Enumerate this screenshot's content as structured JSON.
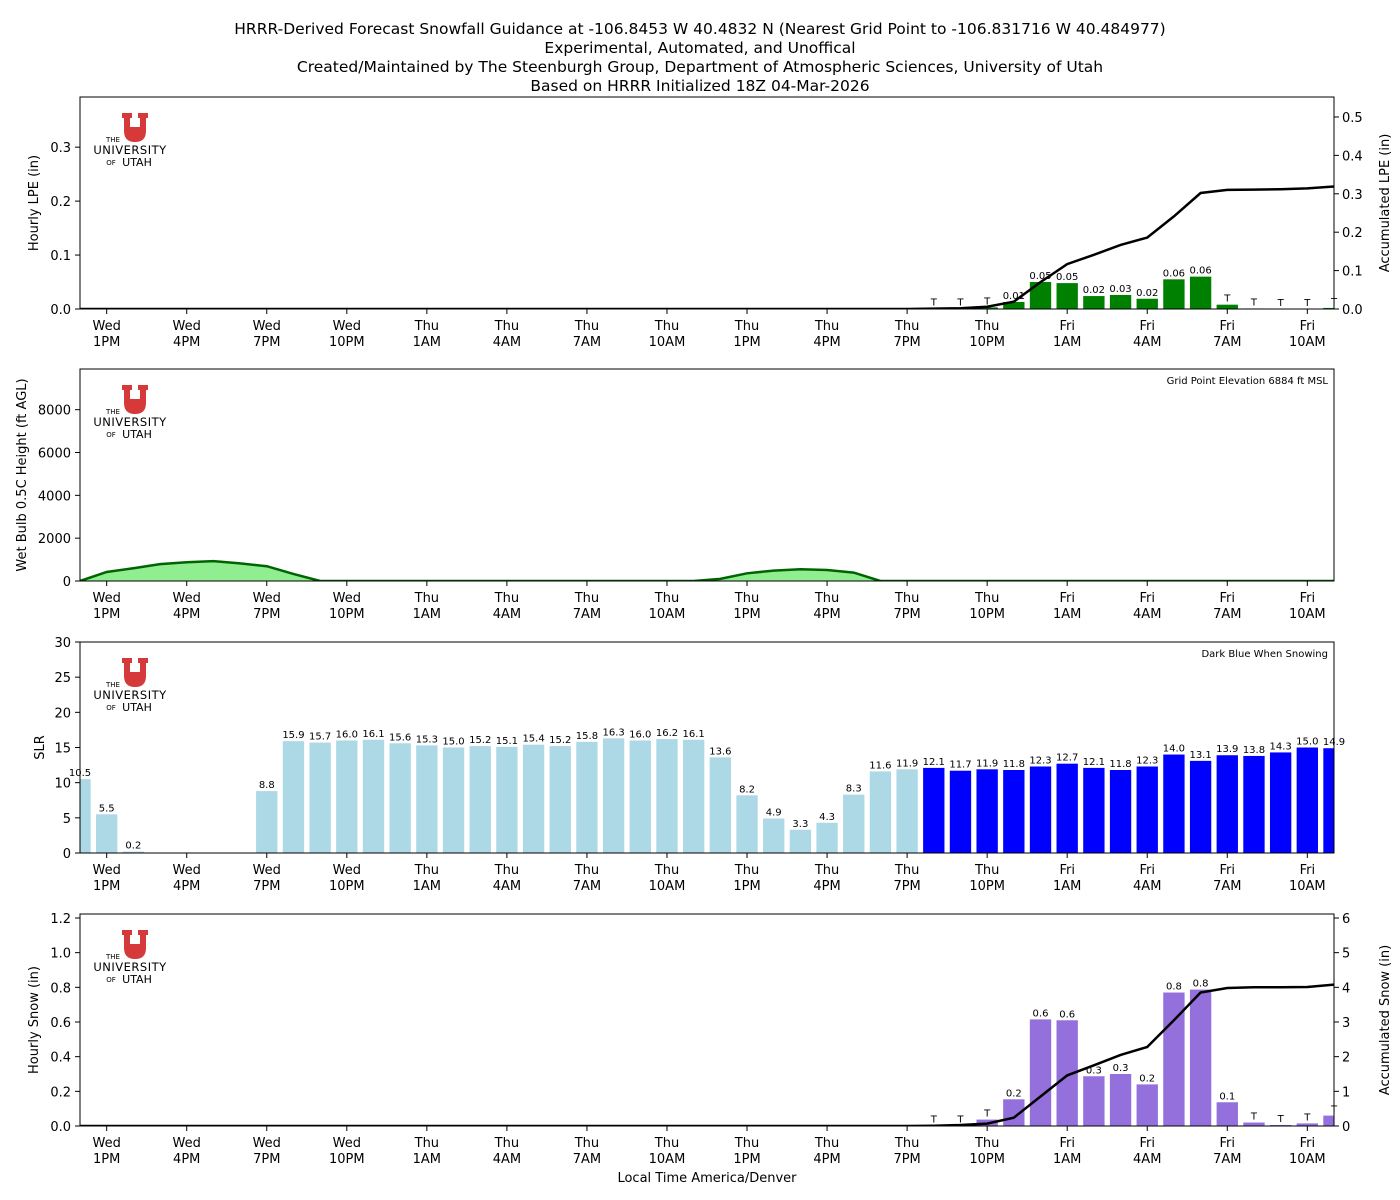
{
  "title_lines": [
    "HRRR-Derived Forecast Snowfall Guidance at -106.8453 W 40.4832 N (Nearest Grid Point to -106.831716 W 40.484977)",
    "Experimental, Automated, and Unoffical",
    "Created/Maintained by The Steenburgh Group, Department of Atmospheric Sciences, University of Utah",
    "Based on HRRR Initialized 18Z 04-Mar-2026"
  ],
  "logo": {
    "the": "THE",
    "university": "UNIVERSITY",
    "of": "OF",
    "utah": "UTAH",
    "color": "#d6393a"
  },
  "colors": {
    "lpe": "#008000",
    "wetbulb_fill": "#90ee90",
    "wetbulb_line": "#006400",
    "slr": "#add8e6",
    "slr_snowing": "#0000ff",
    "snow": "#9370db",
    "accum_line": "#000000"
  },
  "chart_data": [
    {
      "type": "bar",
      "ylabel": "Hourly LPE (in)",
      "ylim": [
        0,
        0.393
      ],
      "yticks": [
        "0.0",
        "0.1",
        "0.2",
        "0.3"
      ],
      "xlabel": "",
      "x_ticks": [
        [
          "Wed",
          "1PM"
        ],
        [
          "Wed",
          "4PM"
        ],
        [
          "Wed",
          "7PM"
        ],
        [
          "Wed",
          "10PM"
        ],
        [
          "Thu",
          "1AM"
        ],
        [
          "Thu",
          "4AM"
        ],
        [
          "Thu",
          "7AM"
        ],
        [
          "Thu",
          "10AM"
        ],
        [
          "Thu",
          "1PM"
        ],
        [
          "Thu",
          "4PM"
        ],
        [
          "Thu",
          "7PM"
        ],
        [
          "Thu",
          "10PM"
        ],
        [
          "Fri",
          "1AM"
        ],
        [
          "Fri",
          "4AM"
        ],
        [
          "Fri",
          "7AM"
        ],
        [
          "Fri",
          "10AM"
        ]
      ],
      "values": [
        0,
        0,
        0,
        0,
        0,
        0,
        0,
        0,
        0,
        0,
        0,
        0,
        0,
        0,
        0,
        0,
        0,
        0,
        0,
        0,
        0,
        0,
        0,
        0,
        0,
        0,
        0,
        0,
        0,
        0,
        0,
        0,
        0.001,
        0.001,
        0.003,
        0.013,
        0.05,
        0.048,
        0.024,
        0.026,
        0.019,
        0.055,
        0.06,
        0.008,
        0.001,
        0,
        0,
        0.002
      ],
      "labels": [
        "",
        "",
        "",
        "",
        "",
        "",
        "",
        "",
        "",
        "",
        "",
        "",
        "",
        "",
        "",
        "",
        "",
        "",
        "",
        "",
        "",
        "",
        "",
        "",
        "",
        "",
        "",
        "",
        "",
        "",
        "",
        "",
        "T",
        "T",
        "T",
        "0.01",
        "0.05",
        "0.05",
        "0.02",
        "0.03",
        "0.02",
        "0.06",
        "0.06",
        "T",
        "T",
        "T",
        "T",
        "T"
      ],
      "secondary": {
        "type": "line",
        "ylabel": "Accumulated LPE (in)",
        "ylim": [
          0,
          0.552
        ],
        "yticks": [
          "0.0",
          "0.1",
          "0.2",
          "0.3",
          "0.4",
          "0.5"
        ],
        "values": [
          0,
          0,
          0,
          0,
          0,
          0,
          0,
          0,
          0,
          0,
          0,
          0,
          0,
          0,
          0,
          0,
          0,
          0,
          0,
          0,
          0,
          0,
          0,
          0,
          0,
          0,
          0,
          0,
          0,
          0,
          0,
          0,
          0.001,
          0.002,
          0.006,
          0.019,
          0.07,
          0.117,
          0.141,
          0.167,
          0.186,
          0.241,
          0.302,
          0.31,
          0.311,
          0.312,
          0.314,
          0.319
        ]
      }
    },
    {
      "type": "area",
      "ylabel": "Wet Bulb 0.5C Height (ft AGL)",
      "ylim": [
        0,
        9900
      ],
      "yticks": [
        "0",
        "2000",
        "4000",
        "6000",
        "8000"
      ],
      "annotation": "Grid Point Elevation 6884 ft MSL",
      "x_ticks": [
        [
          "Wed",
          "1PM"
        ],
        [
          "Wed",
          "4PM"
        ],
        [
          "Wed",
          "7PM"
        ],
        [
          "Wed",
          "10PM"
        ],
        [
          "Thu",
          "1AM"
        ],
        [
          "Thu",
          "4AM"
        ],
        [
          "Thu",
          "7AM"
        ],
        [
          "Thu",
          "10AM"
        ],
        [
          "Thu",
          "1PM"
        ],
        [
          "Thu",
          "4PM"
        ],
        [
          "Thu",
          "7PM"
        ],
        [
          "Thu",
          "10PM"
        ],
        [
          "Fri",
          "1AM"
        ],
        [
          "Fri",
          "4AM"
        ],
        [
          "Fri",
          "7AM"
        ],
        [
          "Fri",
          "10AM"
        ]
      ],
      "values": [
        0,
        420,
        600,
        790,
        880,
        930,
        820,
        690,
        330,
        0,
        0,
        0,
        0,
        0,
        0,
        0,
        0,
        0,
        0,
        0,
        0,
        0,
        0,
        0,
        100,
        360,
        485,
        547,
        515,
        390,
        0,
        0,
        0,
        0,
        0,
        0,
        0,
        0,
        0,
        0,
        0,
        0,
        0,
        0,
        0,
        0,
        0,
        0
      ]
    },
    {
      "type": "bar",
      "ylabel": "SLR",
      "ylim": [
        0,
        30
      ],
      "yticks": [
        "0",
        "5",
        "10",
        "15",
        "20",
        "25",
        "30"
      ],
      "annotation": "Dark Blue When Snowing",
      "x_ticks": [
        [
          "Wed",
          "1PM"
        ],
        [
          "Wed",
          "4PM"
        ],
        [
          "Wed",
          "7PM"
        ],
        [
          "Wed",
          "10PM"
        ],
        [
          "Thu",
          "1AM"
        ],
        [
          "Thu",
          "4AM"
        ],
        [
          "Thu",
          "7AM"
        ],
        [
          "Thu",
          "10AM"
        ],
        [
          "Thu",
          "1PM"
        ],
        [
          "Thu",
          "4PM"
        ],
        [
          "Thu",
          "7PM"
        ],
        [
          "Thu",
          "10PM"
        ],
        [
          "Fri",
          "1AM"
        ],
        [
          "Fri",
          "4AM"
        ],
        [
          "Fri",
          "7AM"
        ],
        [
          "Fri",
          "10AM"
        ]
      ],
      "values": [
        10.5,
        5.5,
        0.2,
        0,
        0,
        0,
        0,
        8.8,
        15.9,
        15.7,
        16.0,
        16.1,
        15.6,
        15.3,
        15.0,
        15.2,
        15.1,
        15.4,
        15.2,
        15.8,
        16.3,
        16.0,
        16.2,
        16.1,
        13.6,
        8.2,
        4.9,
        3.3,
        4.3,
        8.3,
        11.6,
        11.9,
        12.1,
        11.7,
        11.9,
        11.8,
        12.3,
        12.7,
        12.1,
        11.8,
        12.3,
        14.0,
        13.1,
        13.9,
        13.8,
        14.3,
        15.0,
        14.9
      ],
      "labels": [
        "10.5",
        "5.5",
        "0.2",
        "",
        "",
        "",
        "",
        "8.8",
        "15.9",
        "15.7",
        "16.0",
        "16.1",
        "15.6",
        "15.3",
        "15.0",
        "15.2",
        "15.1",
        "15.4",
        "15.2",
        "15.8",
        "16.3",
        "16.0",
        "16.2",
        "16.1",
        "13.6",
        "8.2",
        "4.9",
        "3.3",
        "4.3",
        "8.3",
        "11.6",
        "11.9",
        "12.1",
        "11.7",
        "11.9",
        "11.8",
        "12.3",
        "12.7",
        "12.1",
        "11.8",
        "12.3",
        "14.0",
        "13.1",
        "13.9",
        "13.8",
        "14.3",
        "15.0",
        "14.9"
      ],
      "snowing": [
        false,
        false,
        false,
        false,
        false,
        false,
        false,
        false,
        false,
        false,
        false,
        false,
        false,
        false,
        false,
        false,
        false,
        false,
        false,
        false,
        false,
        false,
        false,
        false,
        false,
        false,
        false,
        false,
        false,
        false,
        false,
        false,
        true,
        true,
        true,
        true,
        true,
        true,
        true,
        true,
        true,
        true,
        true,
        true,
        true,
        true,
        true,
        true
      ]
    },
    {
      "type": "bar",
      "ylabel": "Hourly Snow (in)",
      "ylim": [
        0,
        1.223
      ],
      "yticks": [
        "0.0",
        "0.2",
        "0.4",
        "0.6",
        "0.8",
        "1.0",
        "1.2"
      ],
      "xlabel": "Local Time America/Denver",
      "x_ticks": [
        [
          "Wed",
          "1PM"
        ],
        [
          "Wed",
          "4PM"
        ],
        [
          "Wed",
          "7PM"
        ],
        [
          "Wed",
          "10PM"
        ],
        [
          "Thu",
          "1AM"
        ],
        [
          "Thu",
          "4AM"
        ],
        [
          "Thu",
          "7AM"
        ],
        [
          "Thu",
          "10AM"
        ],
        [
          "Thu",
          "1PM"
        ],
        [
          "Thu",
          "4PM"
        ],
        [
          "Thu",
          "7PM"
        ],
        [
          "Thu",
          "10PM"
        ],
        [
          "Fri",
          "1AM"
        ],
        [
          "Fri",
          "4AM"
        ],
        [
          "Fri",
          "7AM"
        ],
        [
          "Fri",
          "10AM"
        ]
      ],
      "values": [
        0,
        0,
        0,
        0,
        0,
        0,
        0,
        0,
        0,
        0,
        0,
        0,
        0,
        0,
        0,
        0,
        0,
        0,
        0,
        0,
        0,
        0,
        0,
        0,
        0,
        0,
        0,
        0,
        0,
        0,
        0,
        0,
        0.002,
        0.004,
        0.037,
        0.154,
        0.615,
        0.61,
        0.287,
        0.3,
        0.24,
        0.77,
        0.787,
        0.137,
        0.02,
        0.006,
        0.015,
        0.06
      ],
      "labels": [
        "",
        "",
        "",
        "",
        "",
        "",
        "",
        "",
        "",
        "",
        "",
        "",
        "",
        "",
        "",
        "",
        "",
        "",
        "",
        "",
        "",
        "",
        "",
        "",
        "",
        "",
        "",
        "",
        "",
        "",
        "",
        "",
        "T",
        "T",
        "T",
        "0.2",
        "0.6",
        "0.6",
        "0.3",
        "0.3",
        "0.2",
        "0.8",
        "0.8",
        "0.1",
        "T",
        "T",
        "T",
        "T"
      ],
      "secondary": {
        "type": "line",
        "ylabel": "Accumulated Snow (in)",
        "ylim": [
          0,
          6.115
        ],
        "yticks": [
          "0",
          "1",
          "2",
          "3",
          "4",
          "5",
          "6"
        ],
        "values": [
          0,
          0,
          0,
          0,
          0,
          0,
          0,
          0,
          0,
          0,
          0,
          0,
          0,
          0,
          0,
          0,
          0,
          0,
          0,
          0,
          0,
          0,
          0,
          0,
          0,
          0,
          0,
          0,
          0,
          0,
          0,
          0,
          0.01,
          0.03,
          0.07,
          0.24,
          0.85,
          1.46,
          1.75,
          2.05,
          2.28,
          3.05,
          3.85,
          3.98,
          4.0,
          4.0,
          4.01,
          4.08
        ]
      }
    }
  ]
}
